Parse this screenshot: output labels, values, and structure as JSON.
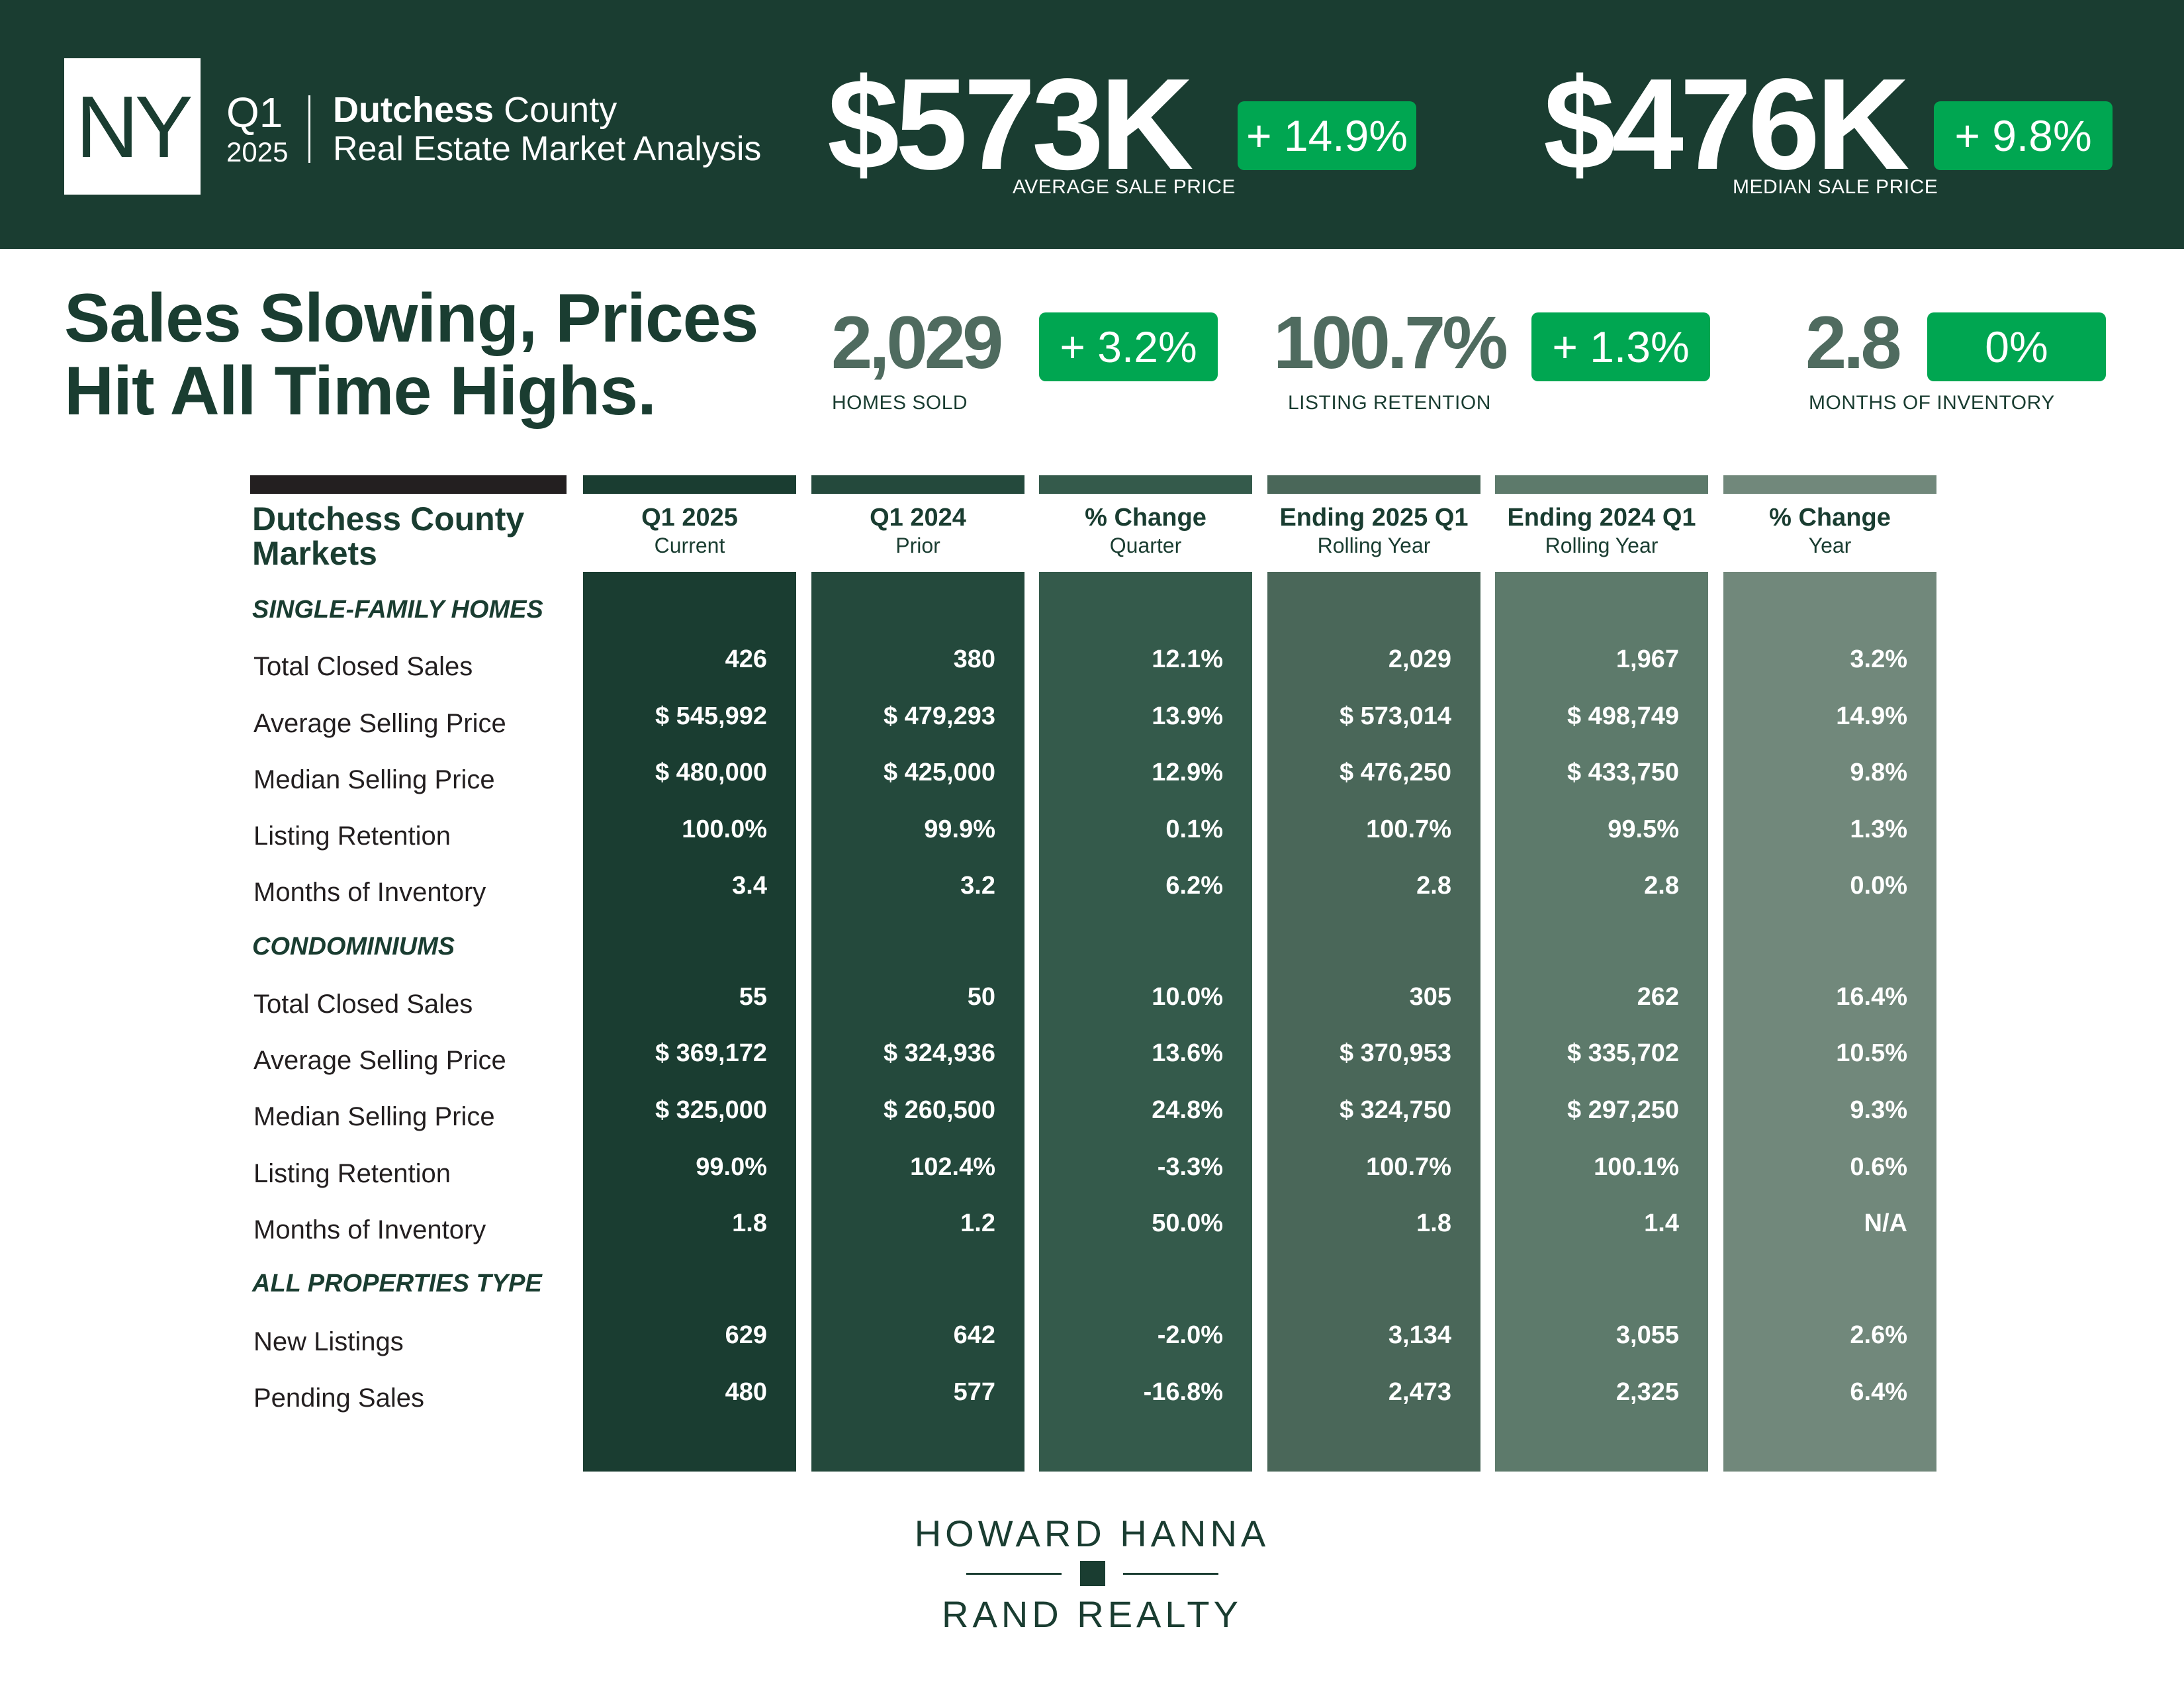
{
  "header": {
    "state": "NY",
    "quarter": "Q1",
    "year": "2025",
    "county_bold": "Dutchess",
    "county_rest": " County",
    "subtitle": "Real Estate Market Analysis",
    "kpis": [
      {
        "value": "$573K",
        "change": "+ 14.9%",
        "caption": "AVERAGE SALE PRICE"
      },
      {
        "value": "$476K",
        "change": "+ 9.8%",
        "caption": "MEDIAN SALE PRICE"
      }
    ]
  },
  "headline": {
    "line1": "Sales Slowing, Prices",
    "line2": "Hit All Time Highs."
  },
  "summary_kpis": [
    {
      "value": "2,029",
      "change": "+ 3.2%",
      "caption": "HOMES SOLD"
    },
    {
      "value": "100.7%",
      "change": "+ 1.3%",
      "caption": "LISTING RETENTION"
    },
    {
      "value": "2.8",
      "change": "0%",
      "caption": "MONTHS OF INVENTORY"
    }
  ],
  "table": {
    "title_line1": "Dutchess County",
    "title_line2": "Markets",
    "columns": [
      {
        "title": "Q1 2025",
        "subtitle": "Current",
        "color": "#1a3d31"
      },
      {
        "title": "Q1 2024",
        "subtitle": "Prior",
        "color": "#24493c"
      },
      {
        "title": "% Change",
        "subtitle": "Quarter",
        "color": "#345a4b"
      },
      {
        "title": "Ending 2025 Q1",
        "subtitle": "Rolling Year",
        "color": "#4a6759"
      },
      {
        "title": "Ending 2024 Q1",
        "subtitle": "Rolling Year",
        "color": "#5d7a6b"
      },
      {
        "title": "% Change",
        "subtitle": "Year",
        "color": "#71887b"
      }
    ],
    "sections": [
      {
        "label": "SINGLE-FAMILY HOMES",
        "rows": [
          {
            "label": "Total Closed Sales",
            "values": [
              "426",
              "380",
              "12.1%",
              "2,029",
              "1,967",
              "3.2%"
            ]
          },
          {
            "label": "Average Selling Price",
            "values": [
              "$ 545,992",
              "$ 479,293",
              "13.9%",
              "$ 573,014",
              "$ 498,749",
              "14.9%"
            ]
          },
          {
            "label": "Median Selling Price",
            "values": [
              "$ 480,000",
              "$ 425,000",
              "12.9%",
              "$ 476,250",
              "$ 433,750",
              "9.8%"
            ]
          },
          {
            "label": "Listing Retention",
            "values": [
              "100.0%",
              "99.9%",
              "0.1%",
              "100.7%",
              "99.5%",
              "1.3%"
            ]
          },
          {
            "label": "Months of Inventory",
            "values": [
              "3.4",
              "3.2",
              "6.2%",
              "2.8",
              "2.8",
              "0.0%"
            ]
          }
        ]
      },
      {
        "label": "CONDOMINIUMS",
        "rows": [
          {
            "label": "Total Closed Sales",
            "values": [
              "55",
              "50",
              "10.0%",
              "305",
              "262",
              "16.4%"
            ]
          },
          {
            "label": "Average Selling Price",
            "values": [
              "$ 369,172",
              "$ 324,936",
              "13.6%",
              "$ 370,953",
              "$ 335,702",
              "10.5%"
            ]
          },
          {
            "label": "Median Selling Price",
            "values": [
              "$ 325,000",
              "$ 260,500",
              "24.8%",
              "$ 324,750",
              "$ 297,250",
              "9.3%"
            ]
          },
          {
            "label": "Listing Retention",
            "values": [
              "99.0%",
              "102.4%",
              "-3.3%",
              "100.7%",
              "100.1%",
              "0.6%"
            ]
          },
          {
            "label": "Months of Inventory",
            "values": [
              "1.8",
              "1.2",
              "50.0%",
              "1.8",
              "1.4",
              "N/A"
            ]
          }
        ]
      },
      {
        "label": "ALL PROPERTIES TYPE",
        "rows": [
          {
            "label": "New Listings",
            "values": [
              "629",
              "642",
              "-2.0%",
              "3,134",
              "3,055",
              "2.6%"
            ]
          },
          {
            "label": "Pending Sales",
            "values": [
              "480",
              "577",
              "-16.8%",
              "2,473",
              "2,325",
              "6.4%"
            ]
          }
        ]
      }
    ]
  },
  "logo": {
    "line1": "HOWARD HANNA",
    "line2": "RAND REALTY"
  },
  "colors": {
    "brand_dark": "#1a3d31",
    "badge_green": "#00a651"
  }
}
